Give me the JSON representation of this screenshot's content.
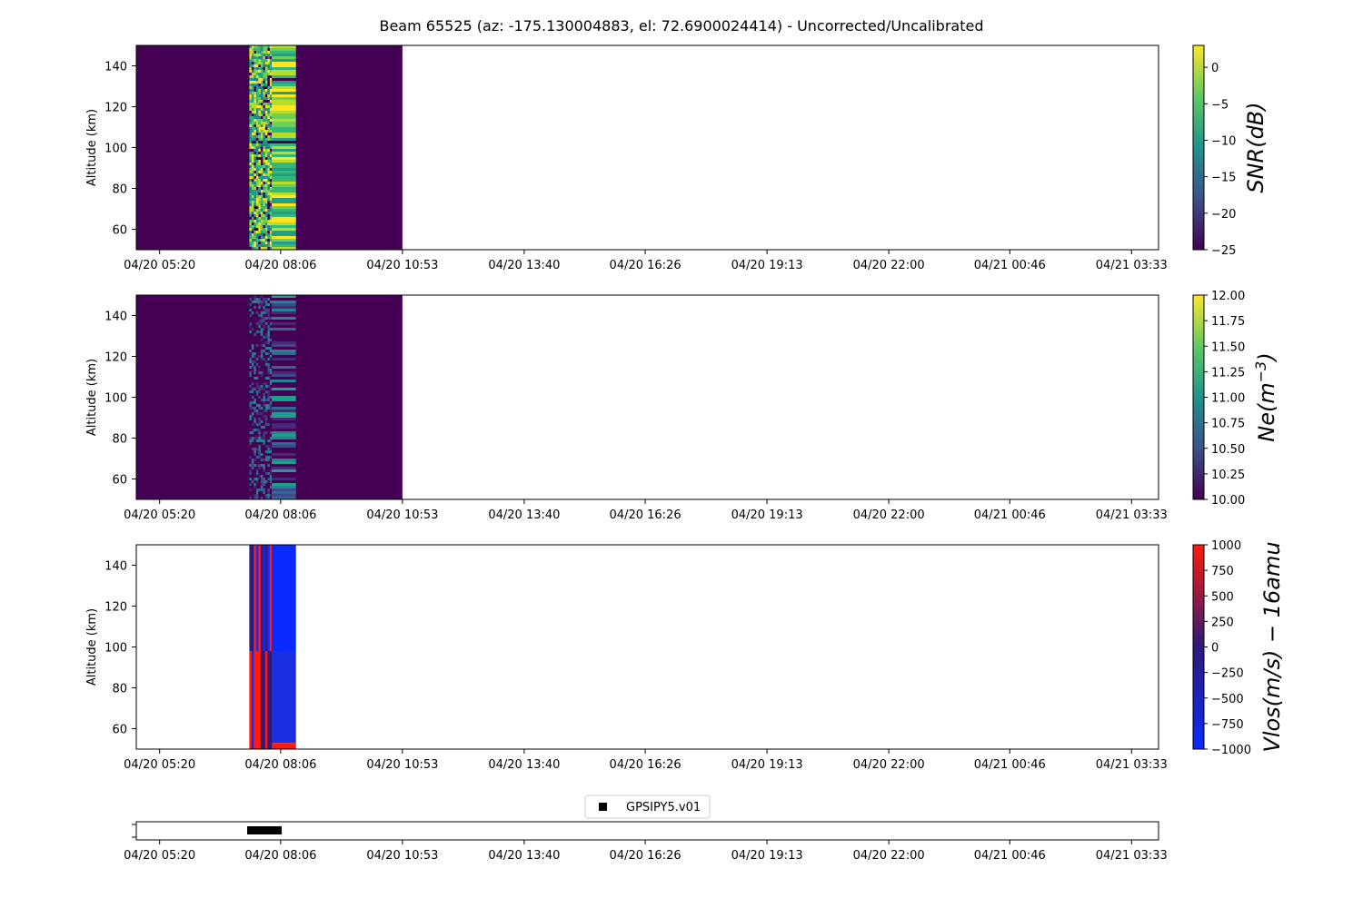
{
  "figure": {
    "title": "Beam 65525 (az: -175.130004883, el: 72.6900024414) - Uncorrected/Uncalibrated"
  },
  "colors": {
    "viridis_dark": "#440154",
    "viridis_teal": "#21918c",
    "viridis_green": "#5ec962",
    "viridis_yellow": "#fde725",
    "vlos_red": "#ff1a0a",
    "vlos_blue": "#0a2bff",
    "vlos_dark": "#2e1a7a"
  },
  "time_ticks": [
    "04/20 05:20",
    "04/20 08:06",
    "04/20 10:53",
    "04/20 13:40",
    "04/20 16:26",
    "04/20 19:13",
    "04/20 22:00",
    "04/21 00:46",
    "04/21 03:33"
  ],
  "chart_data": [
    {
      "type": "heatmap",
      "name": "snr",
      "ylabel": "Altitude (km)",
      "ylim": [
        50,
        150
      ],
      "yticks": [
        60,
        80,
        100,
        120,
        140
      ],
      "xlim": [
        "04/20 04:48",
        "04/21 04:10"
      ],
      "data_extent": [
        "04/20 04:48",
        "04/20 10:53"
      ],
      "active_extent": [
        "04/20 07:23",
        "04/20 08:27"
      ],
      "colorbar": {
        "label": "SNR(dB)",
        "range": [
          -25,
          3
        ],
        "ticks": [
          "0",
          "−5",
          "−10",
          "−15",
          "−20",
          "−25"
        ],
        "tick_values": [
          0,
          -5,
          -10,
          -15,
          -20,
          -25
        ],
        "colormap": "viridis"
      }
    },
    {
      "type": "heatmap",
      "name": "ne",
      "ylabel": "Altitude (km)",
      "ylim": [
        50,
        150
      ],
      "yticks": [
        60,
        80,
        100,
        120,
        140
      ],
      "xlim": [
        "04/20 04:48",
        "04/21 04:10"
      ],
      "data_extent": [
        "04/20 04:48",
        "04/20 10:53"
      ],
      "active_extent": [
        "04/20 07:23",
        "04/20 08:27"
      ],
      "colorbar": {
        "label": "Ne(m^-3)",
        "range": [
          10,
          12
        ],
        "ticks": [
          "12.00",
          "11.75",
          "11.50",
          "11.25",
          "11.00",
          "10.75",
          "10.50",
          "10.25",
          "10.00"
        ],
        "tick_values": [
          12,
          11.75,
          11.5,
          11.25,
          11,
          10.75,
          10.5,
          10.25,
          10
        ],
        "colormap": "viridis"
      }
    },
    {
      "type": "heatmap",
      "name": "vlos",
      "ylabel": "Altitude (km)",
      "ylim": [
        50,
        150
      ],
      "yticks": [
        60,
        80,
        100,
        120,
        140
      ],
      "xlim": [
        "04/20 04:48",
        "04/21 04:10"
      ],
      "active_extent": [
        "04/20 07:23",
        "04/20 08:27"
      ],
      "colorbar": {
        "label": "Vlos(m/s) − 16amu",
        "range": [
          -1000,
          1000
        ],
        "ticks": [
          "1000",
          "750",
          "500",
          "250",
          "0",
          "−250",
          "−500",
          "−750",
          "−1000"
        ],
        "tick_values": [
          1000,
          750,
          500,
          250,
          0,
          -250,
          -500,
          -750,
          -1000
        ],
        "colormap": "blue-red"
      }
    },
    {
      "type": "scatter",
      "name": "gps",
      "legend": [
        "GPSIPY5.v01"
      ],
      "legend_position": "top-center",
      "x_extent": [
        "04/20 07:25",
        "04/20 08:05"
      ],
      "marker": "square",
      "color": "#000000"
    }
  ]
}
